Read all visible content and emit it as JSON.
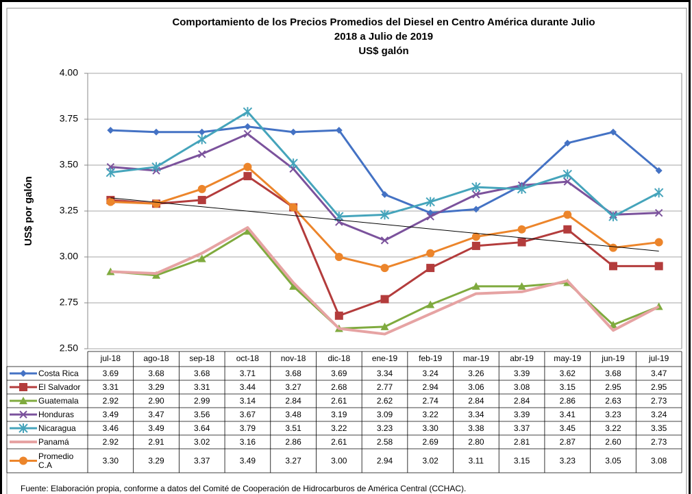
{
  "chart_data": {
    "type": "line",
    "title_lines": [
      "Comportamiento de los Precios Promedios del Diesel en Centro América durante Julio",
      "2018  a Julio de 2019",
      "US$ galón"
    ],
    "y_label": "US$ por galón",
    "categories": [
      "jul-18",
      "ago-18",
      "sep-18",
      "oct-18",
      "nov-18",
      "dic-18",
      "ene-19",
      "feb-19",
      "mar-19",
      "abr-19",
      "may-19",
      "jun-19",
      "jul-19"
    ],
    "ylim": [
      2.5,
      4
    ],
    "yticks": [
      {
        "value": 2.5,
        "label": "2.50"
      },
      2.75,
      {
        "value": 3,
        "label": "3.00"
      },
      3.25,
      {
        "value": 3.5,
        "label": "3.50"
      },
      3.75,
      {
        "value": 4,
        "label": "4.00"
      }
    ],
    "grid": true,
    "trendline": true,
    "series": [
      {
        "name": "Costa Rica",
        "color": "#4472c4",
        "marker": "diamond",
        "values": [
          3.69,
          3.68,
          3.68,
          3.71,
          3.68,
          3.69,
          3.34,
          3.24,
          3.26,
          3.39,
          3.62,
          3.68,
          3.47
        ],
        "value_labels": [
          "3.69",
          "3.68",
          "3.68",
          "3.71",
          "3.68",
          "3.69",
          "3.34",
          "3.24",
          "3.26",
          "3.39",
          "3.62",
          "3.68",
          "3.47"
        ]
      },
      {
        "name": "El Salvador",
        "color": "#b33c3c",
        "marker": "square",
        "values": [
          3.31,
          3.29,
          3.31,
          3.44,
          3.27,
          2.68,
          2.77,
          2.94,
          3.06,
          3.08,
          3.15,
          2.95,
          2.95
        ],
        "value_labels": [
          "3.31",
          "3.29",
          "3.31",
          "3.44",
          "3.27",
          "2.68",
          "2.77",
          "2.94",
          "3.06",
          "3.08",
          "3.15",
          "2.95",
          "2.95"
        ]
      },
      {
        "name": "Guatemala",
        "color": "#7faa3e",
        "marker": "triangle",
        "values": [
          2.92,
          2.9,
          2.99,
          3.14,
          2.84,
          2.61,
          2.62,
          2.74,
          2.84,
          2.84,
          2.86,
          2.63,
          2.73
        ],
        "value_labels": [
          "2.92",
          "2.90",
          "2.99",
          "3.14",
          "2.84",
          "2.61",
          "2.62",
          "2.74",
          "2.84",
          "2.84",
          "2.86",
          "2.63",
          "2.73"
        ]
      },
      {
        "name": "Honduras",
        "color": "#7b529c",
        "marker": "x",
        "values": [
          3.49,
          3.47,
          3.56,
          3.67,
          3.48,
          3.19,
          3.09,
          3.22,
          3.34,
          3.39,
          3.41,
          3.23,
          3.24
        ],
        "value_labels": [
          "3.49",
          "3.47",
          "3.56",
          "3.67",
          "3.48",
          "3.19",
          "3.09",
          "3.22",
          "3.34",
          "3.39",
          "3.41",
          "3.23",
          "3.24"
        ]
      },
      {
        "name": "Nicaragua",
        "color": "#45a4bb",
        "marker": "star",
        "values": [
          3.46,
          3.49,
          3.64,
          3.79,
          3.51,
          3.22,
          3.23,
          3.3,
          3.38,
          3.37,
          3.45,
          3.22,
          3.35
        ],
        "value_labels": [
          "3.46",
          "3.49",
          "3.64",
          "3.79",
          "3.51",
          "3.22",
          "3.23",
          "3.30",
          "3.38",
          "3.37",
          "3.45",
          "3.22",
          "3.35"
        ]
      },
      {
        "name": "Panamá",
        "color": "#e6a3a3",
        "marker": "none",
        "values": [
          2.92,
          2.91,
          3.02,
          3.16,
          2.86,
          2.61,
          2.58,
          2.69,
          2.8,
          2.81,
          2.87,
          2.6,
          2.73
        ],
        "value_labels": [
          "2.92",
          "2.91",
          "3.02",
          "3.16",
          "2.86",
          "2.61",
          "2.58",
          "2.69",
          "2.80",
          "2.81",
          "2.87",
          "2.60",
          "2.73"
        ]
      },
      {
        "name": "Promedio C.A",
        "color": "#ec852b",
        "marker": "circle",
        "values": [
          3.3,
          3.29,
          3.37,
          3.49,
          3.27,
          3.0,
          2.94,
          3.02,
          3.11,
          3.15,
          3.23,
          3.05,
          3.08
        ],
        "value_labels": [
          "3.30",
          "3.29",
          "3.37",
          "3.49",
          "3.27",
          "3.00",
          "2.94",
          "3.02",
          "3.11",
          "3.15",
          "3.23",
          "3.05",
          "3.08"
        ]
      }
    ],
    "source": "Fuente: Elaboración propia, conforme a datos del Comité de Cooperación de Hidrocarburos de América Central (CCHAC)."
  }
}
